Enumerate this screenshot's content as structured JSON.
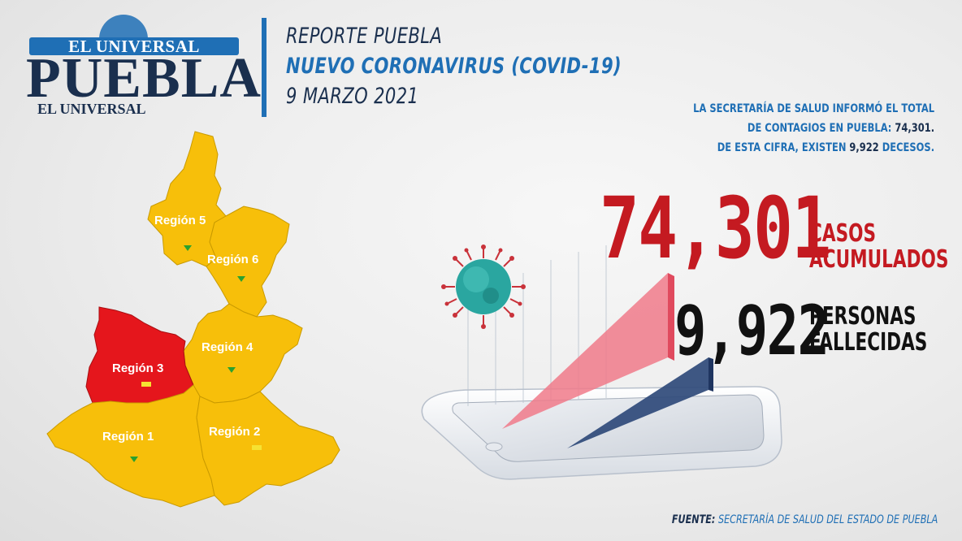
{
  "logo": {
    "top": "EL UNIVERSAL",
    "main": "PUEBLA",
    "bottom": "EL UNIVERSAL"
  },
  "header": {
    "line1": "REPORTE PUEBLA",
    "line2": "NUEVO CORONAVIRUS (COVID-19)",
    "line3": "9 MARZO 2021"
  },
  "info": {
    "line1": "LA SECRETARÍA DE SALUD  INFORMÓ EL TOTAL",
    "line2_prefix": "DE CONTAGIOS EN PUEBLA: ",
    "line2_value": "74,301.",
    "line3_prefix": "DE ESTA CIFRA, EXISTEN ",
    "line3_value": "9,922",
    "line3_suffix": " DECESOS."
  },
  "stats": {
    "cases_value": "74,301",
    "cases_label_1": "CASOS",
    "cases_label_2": "ACUMULADOS",
    "deaths_value": "9,922",
    "deaths_label_1": "PERSONAS",
    "deaths_label_2": "FALLECIDAS"
  },
  "map": {
    "regions": [
      {
        "id": "region-5",
        "label": "Región 5",
        "marker": "green-triangle"
      },
      {
        "id": "region-6",
        "label": "Región 6",
        "marker": "green-triangle"
      },
      {
        "id": "region-4",
        "label": "Región 4",
        "marker": "green-triangle"
      },
      {
        "id": "region-3",
        "label": "Región 3",
        "marker": "yellow-bar"
      },
      {
        "id": "region-1",
        "label": "Región 1",
        "marker": "green-triangle"
      },
      {
        "id": "region-2",
        "label": "Región 2",
        "marker": "yellow-bar"
      }
    ],
    "colors": {
      "yellow": "#f7bf0a",
      "red": "#e5161c",
      "green": "#2aa12f",
      "marker_yellow": "#f6e232"
    }
  },
  "source": {
    "prefix": "FUENTE:",
    "text": " SECRETARÍA DE SALUD DEL ESTADO DE PUEBLA"
  },
  "colors": {
    "blue": "#1f6fb5",
    "navy": "#1a2f4e",
    "red": "#c41a21"
  }
}
